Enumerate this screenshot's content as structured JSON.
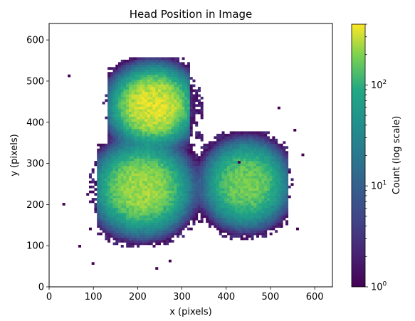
{
  "chart_data": {
    "type": "heatmap",
    "title": "Head Position in Image",
    "xlabel": "x (pixels)",
    "ylabel": "y (pixels)",
    "xlim": [
      0,
      640
    ],
    "ylim": [
      0,
      640
    ],
    "x_ticks": [
      0,
      100,
      200,
      300,
      400,
      500,
      600
    ],
    "y_ticks": [
      0,
      100,
      200,
      300,
      400,
      500,
      600
    ],
    "bin_size": 6,
    "colormap": "viridis",
    "colorbar": {
      "label": "Count (log scale)",
      "scale": "log",
      "range": [
        1,
        400
      ],
      "ticks": [
        {
          "value": 1,
          "base": "10",
          "exp": "0"
        },
        {
          "value": 10,
          "base": "10",
          "exp": "1"
        },
        {
          "value": 100,
          "base": "10",
          "exp": "2"
        }
      ]
    },
    "clusters": [
      {
        "cx": 235,
        "cy": 440,
        "peak": 330,
        "rx_spread": 72,
        "ry_spread": 70
      },
      {
        "cx": 210,
        "cy": 240,
        "peak": 230,
        "rx_spread": 80,
        "ry_spread": 80
      },
      {
        "cx": 445,
        "cy": 250,
        "peak": 170,
        "rx_spread": 70,
        "ry_spread": 75
      }
    ],
    "support_regions": [
      {
        "x0": 130,
        "x1": 320,
        "y0": 335,
        "y1": 555
      },
      {
        "x0": 110,
        "x1": 340,
        "y0": 95,
        "y1": 350
      },
      {
        "x0": 330,
        "x1": 540,
        "y0": 115,
        "y1": 375
      },
      {
        "x0": 300,
        "x1": 360,
        "y0": 130,
        "y1": 200
      }
    ],
    "outliers": [
      {
        "x": 45,
        "y": 515
      },
      {
        "x": 32,
        "y": 200
      },
      {
        "x": 100,
        "y": 55
      },
      {
        "x": 70,
        "y": 100
      },
      {
        "x": 575,
        "y": 318
      },
      {
        "x": 555,
        "y": 380
      },
      {
        "x": 520,
        "y": 435
      },
      {
        "x": 430,
        "y": 300
      },
      {
        "x": 245,
        "y": 45
      },
      {
        "x": 270,
        "y": 65
      },
      {
        "x": 90,
        "y": 140
      },
      {
        "x": 560,
        "y": 140
      }
    ]
  }
}
